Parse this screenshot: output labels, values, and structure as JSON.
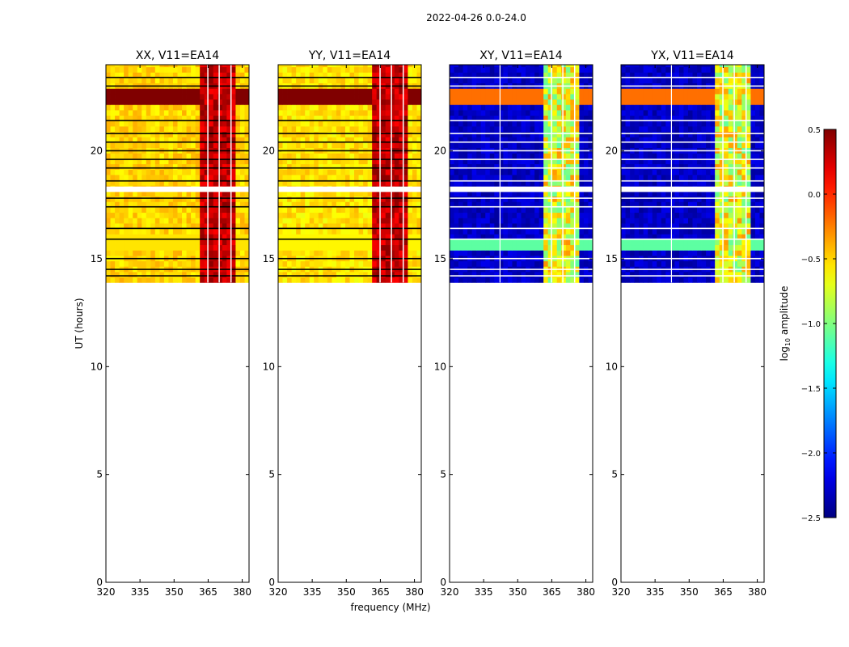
{
  "figure_title": "2022-04-26 0.0-24.0",
  "chart_data": {
    "type": "heatmap",
    "suptitle": "2022-04-26 0.0-24.0",
    "xlabel": "frequency (MHz)",
    "ylabel": "UT (hours)",
    "xlim": [
      320,
      383
    ],
    "ylim": [
      0,
      24
    ],
    "xticks": [
      320,
      335,
      350,
      365,
      380
    ],
    "yticks": [
      0,
      5,
      10,
      15,
      20
    ],
    "data_time_range": [
      13.9,
      24.0
    ],
    "rfi_band_MHz": [
      361,
      378
    ],
    "panels": [
      {
        "title": "XX, V11=EA14",
        "pol": "XX",
        "baseline": "V11=EA14",
        "base_level": -0.5,
        "rfi_level": 0.3
      },
      {
        "title": "YY, V11=EA14",
        "pol": "YY",
        "baseline": "V11=EA14",
        "base_level": -0.55,
        "rfi_level": 0.3
      },
      {
        "title": "XY, V11=EA14",
        "pol": "XY",
        "baseline": "V11=EA14",
        "base_level": -2.3,
        "rfi_level": -0.7
      },
      {
        "title": "YX, V11=EA14",
        "pol": "YX",
        "baseline": "V11=EA14",
        "base_level": -2.3,
        "rfi_level": -0.7
      }
    ],
    "colorbar": {
      "label": "log10 amplitude",
      "label_main": "log",
      "label_sub": "10",
      "label_tail": " amplitude",
      "min": -2.5,
      "max": 0.5,
      "ticks": [
        0.5,
        0.0,
        -0.5,
        -1.0,
        -1.5,
        -2.0,
        -2.5
      ],
      "tick_labels": [
        "0.5",
        "0.0",
        "−0.5",
        "−1.0",
        "−1.5",
        "−2.0",
        "−2.5"
      ],
      "colormap": "jet"
    }
  }
}
